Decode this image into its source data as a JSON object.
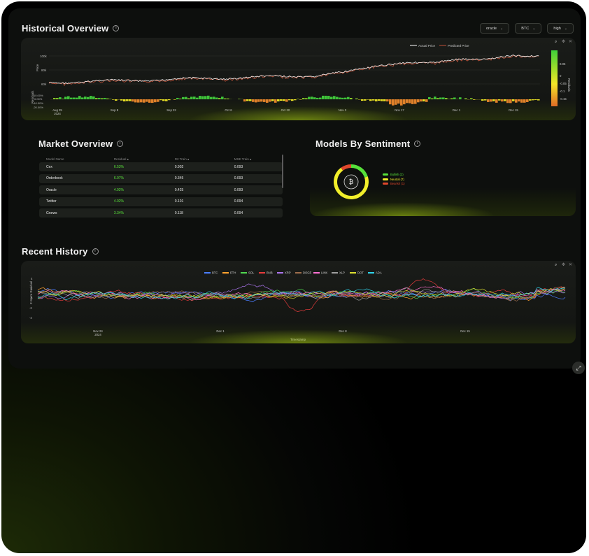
{
  "historical": {
    "title": "Historical Overview",
    "selects": [
      {
        "label": "oracle"
      },
      {
        "label": "BTC"
      },
      {
        "label": "high"
      }
    ],
    "legend": {
      "actual": "Actual Price",
      "predicted": "Predicted Price"
    },
    "y_label": "Price",
    "y_ticks": [
      "100k",
      "80k",
      "60k"
    ],
    "residual_label": "Residuals",
    "residual_ticks": [
      "10.00%",
      "0.00%",
      "-10.00%",
      "-20.00%"
    ],
    "x_ticks": [
      "Aug 25\n2024",
      "Sep 8",
      "Sep 22",
      "Oct 6",
      "Oct 20",
      "Nov 3",
      "Nov 17",
      "Dec 1",
      "Dec 15"
    ],
    "colorbar_label": "Residuals",
    "colorbar_ticks": [
      "0.05",
      "0",
      "-0.05",
      "-0.1",
      "-0.15"
    ]
  },
  "market": {
    "title": "Market Overview",
    "columns": [
      "Model Name",
      "Residual ▴",
      "R2 Train ▴",
      "MSE Train ▴"
    ],
    "rows": [
      {
        "name": "Cex",
        "residual": "6.53%",
        "r2": "0.902",
        "mse": "0.093"
      },
      {
        "name": "Orderbook",
        "residual": "6.07%",
        "r2": "0.345",
        "mse": "0.093"
      },
      {
        "name": "Oracle",
        "residual": "4.92%",
        "r2": "0.425",
        "mse": "0.093"
      },
      {
        "name": "Twitter",
        "residual": "4.02%",
        "r2": "0.101",
        "mse": "0.094"
      },
      {
        "name": "Gnews",
        "residual": "3.34%",
        "r2": "0.118",
        "mse": "0.094"
      }
    ]
  },
  "sentiment": {
    "title": "Models By Sentiment",
    "legend": [
      {
        "label": "Bullish (2)",
        "color": "#57e03a"
      },
      {
        "label": "Neutral (7)",
        "color": "#f1ee2a"
      },
      {
        "label": "Bearish (1)",
        "color": "#e0472c"
      }
    ],
    "center_symbol": "₿"
  },
  "recent": {
    "title": "Recent History",
    "legend": [
      "BTC",
      "ETH",
      "SOL",
      "BNB",
      "XRP",
      "DOGE",
      "LINK",
      "XLP",
      "DOT",
      "ADA"
    ],
    "colors": [
      "#4a7cff",
      "#ff9f2e",
      "#4fd34f",
      "#e23b3b",
      "#a873e8",
      "#9a6b4b",
      "#ff6fcf",
      "#9b9b9b",
      "#d7d930",
      "#2fd0e6"
    ],
    "y_label": "Z-Score Residual",
    "y_ticks": [
      "4",
      "2",
      "0",
      "-2",
      "-4"
    ],
    "x_ticks": [
      "Nov 24\n2024",
      "Dec 1",
      "Dec 8",
      "Dec 15"
    ],
    "x_label": "Timestamp"
  }
}
